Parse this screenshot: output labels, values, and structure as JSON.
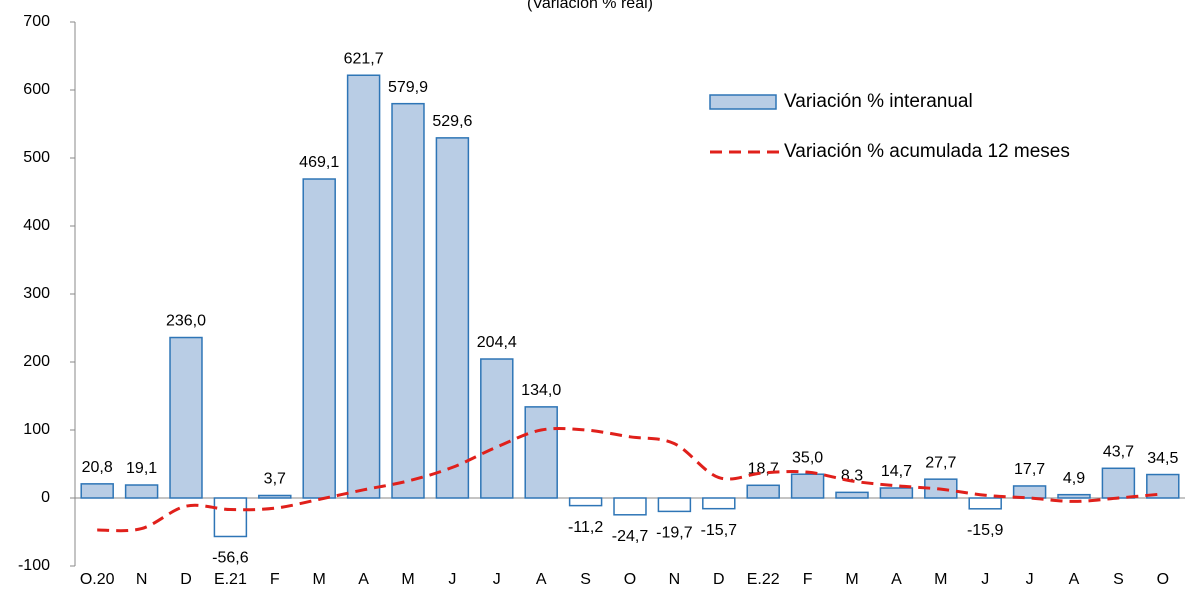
{
  "chart_data": {
    "type": "bar",
    "title": "(Variación  % real)",
    "categories": [
      "O.20",
      "N",
      "D",
      "E.21",
      "F",
      "M",
      "A",
      "M",
      "J",
      "J",
      "A",
      "S",
      "O",
      "N",
      "D",
      "E.22",
      "F",
      "M",
      "A",
      "M",
      "J",
      "J",
      "A",
      "S",
      "O"
    ],
    "series": [
      {
        "name": "Variación % interanual",
        "type": "bar",
        "color": "#b9cde5",
        "edge_color": "#2e75b6",
        "negative_color": "#ffffff",
        "values": [
          20.8,
          19.1,
          236.0,
          -56.6,
          3.7,
          469.1,
          621.7,
          579.9,
          529.6,
          204.4,
          134.0,
          -11.2,
          -24.7,
          -19.7,
          -15.7,
          18.7,
          35.0,
          8.3,
          14.7,
          27.7,
          -15.9,
          17.7,
          4.9,
          43.7,
          34.5
        ],
        "value_labels": [
          "20,8",
          "19,1",
          "236,0",
          "-56,6",
          "3,7",
          "469,1",
          "621,7",
          "579,9",
          "529,6",
          "204,4",
          "134,0",
          "-11,2",
          "-24,7",
          "-19,7",
          "-15,7",
          "18,7",
          "35,0",
          "8,3",
          "14,7",
          "27,7",
          "-15,9",
          "17,7",
          "4,9",
          "43,7",
          "34,5"
        ]
      },
      {
        "name": "Variación % acumulada 12 meses",
        "type": "line",
        "color": "#e0201b",
        "dashed": true,
        "values": [
          -47,
          -45,
          -12,
          -17,
          -15,
          -2,
          12,
          25,
          45,
          75,
          100,
          100,
          90,
          80,
          30,
          37,
          38,
          25,
          18,
          13,
          4,
          0,
          -5,
          0,
          6
        ]
      }
    ],
    "ylim": [
      -100,
      700
    ],
    "yticks": [
      -100,
      0,
      100,
      200,
      300,
      400,
      500,
      600,
      700
    ],
    "legend": "upper right"
  }
}
